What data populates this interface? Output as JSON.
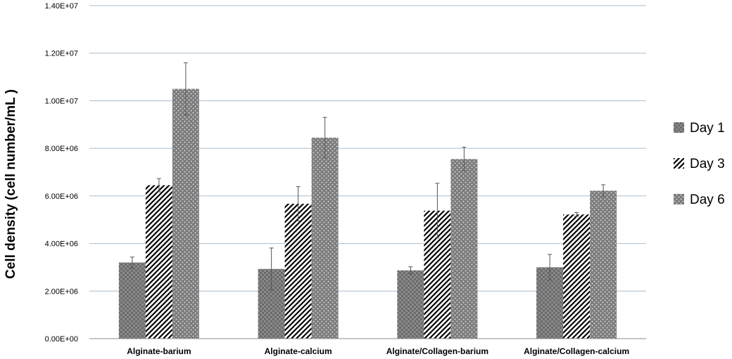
{
  "chart_data": {
    "type": "bar",
    "ylabel": "Cell density (cell number/mL )",
    "categories": [
      "Alginate-barium",
      "Alginate-calcium",
      "Alginate/Collagen-barium",
      "Alginate/Collagen-calcium"
    ],
    "series": [
      {
        "name": "Day 1",
        "values": [
          3200000,
          2930000,
          2870000,
          3000000
        ],
        "errors": [
          230000,
          880000,
          150000,
          540000
        ],
        "pattern": "checker"
      },
      {
        "name": "Day 3",
        "values": [
          6450000,
          5670000,
          5380000,
          5220000
        ],
        "errors": [
          280000,
          720000,
          1150000,
          80000
        ],
        "pattern": "diagonal"
      },
      {
        "name": "Day 6",
        "values": [
          10500000,
          8450000,
          7550000,
          6220000
        ],
        "errors": [
          1100000,
          850000,
          500000,
          250000
        ],
        "pattern": "dotted"
      }
    ],
    "ylim": [
      0,
      14000000
    ],
    "yticks": [
      "0.00E+00",
      "2.00E+06",
      "4.00E+06",
      "6.00E+06",
      "8.00E+06",
      "1.00E+07",
      "1.20E+07",
      "1.40E+07"
    ],
    "ytick_values": [
      0,
      2000000,
      4000000,
      6000000,
      8000000,
      10000000,
      12000000,
      14000000
    ],
    "grid": true,
    "legend": "right",
    "colors": {
      "bar_base": "#7a7a7a",
      "grid": "#a9bcd0",
      "axis": "#8c8c8c"
    }
  }
}
